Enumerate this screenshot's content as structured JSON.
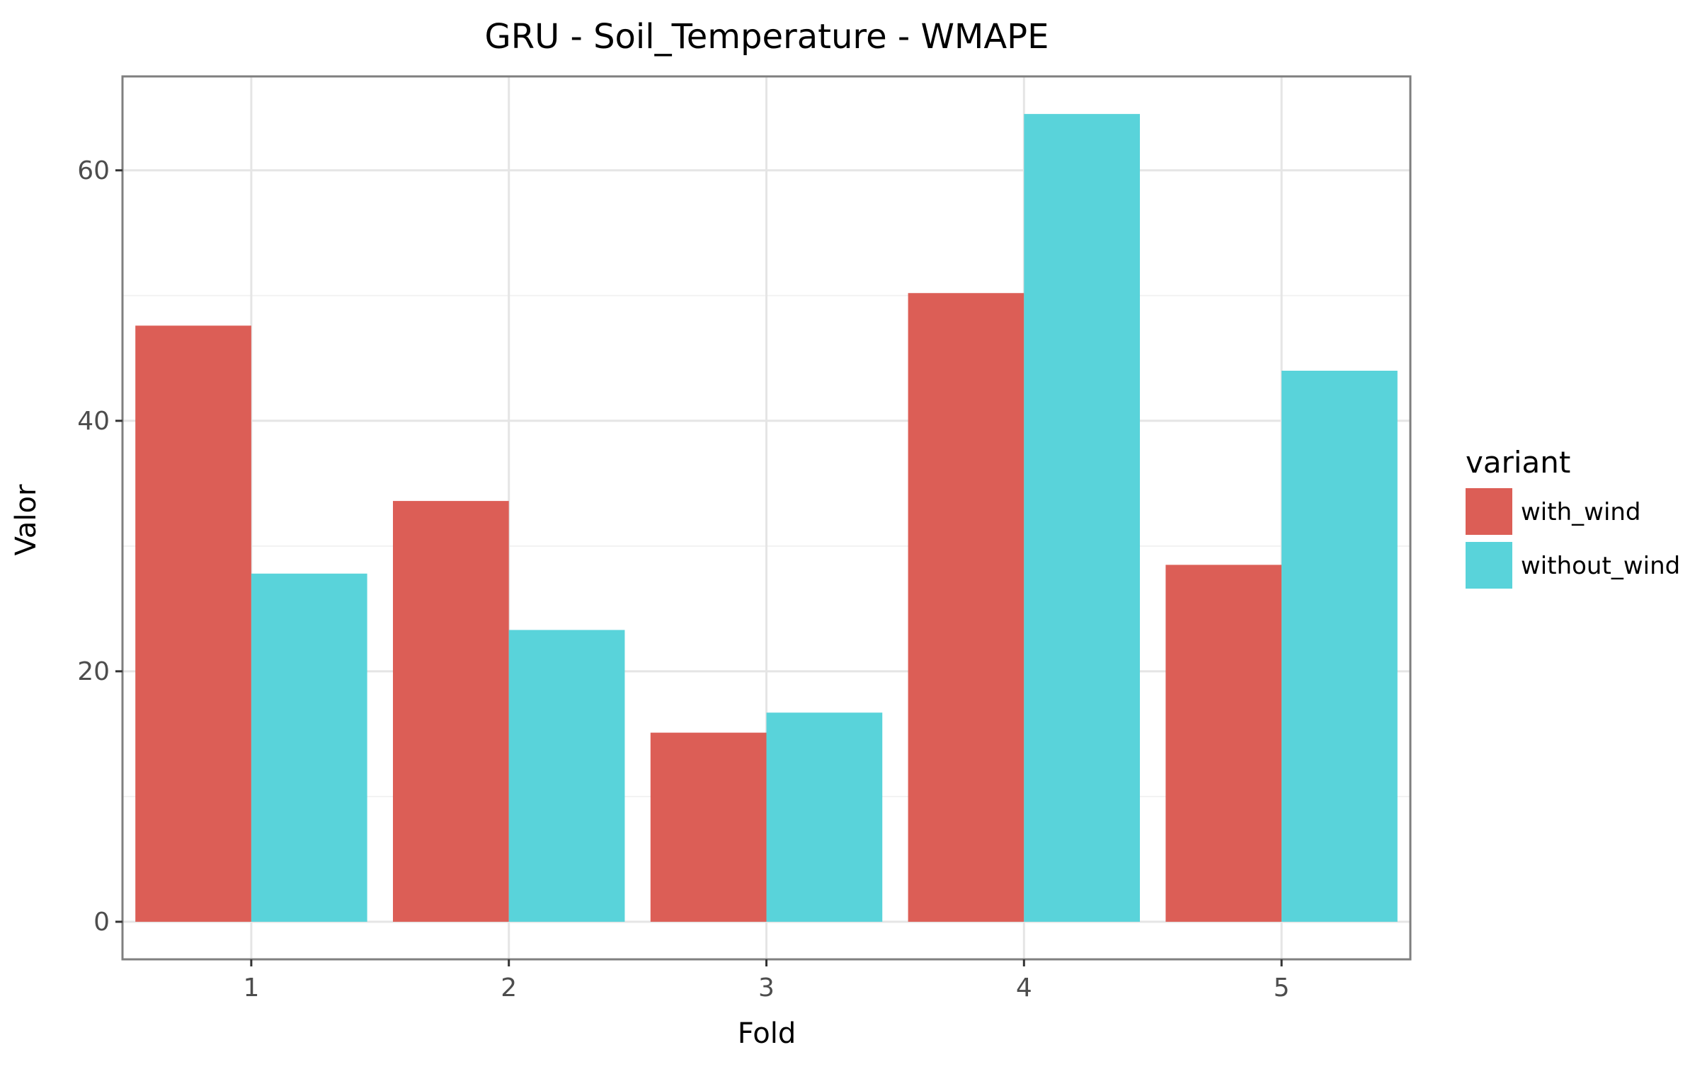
{
  "chart_data": {
    "type": "bar",
    "title": "GRU - Soil_Temperature - WMAPE",
    "xlabel": "Fold",
    "ylabel": "Valor",
    "categories": [
      "1",
      "2",
      "3",
      "4",
      "5"
    ],
    "yticks": [
      "0",
      "20",
      "40",
      "60"
    ],
    "ylim": [
      -3,
      67.5
    ],
    "grid": true,
    "legend": {
      "title": "variant",
      "position": "right"
    },
    "series": [
      {
        "name": "with_wind",
        "color": "#dc5e56",
        "values": [
          47.6,
          33.6,
          15.1,
          50.2,
          28.5
        ]
      },
      {
        "name": "without_wind",
        "color": "#59d3da",
        "values": [
          27.8,
          23.3,
          16.7,
          64.5,
          44.0
        ]
      }
    ]
  }
}
